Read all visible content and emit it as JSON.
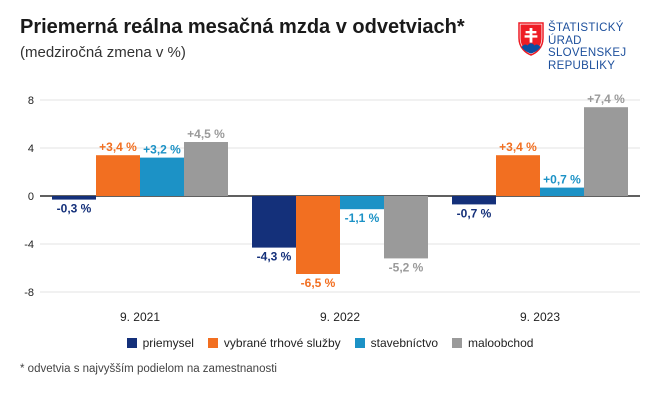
{
  "header": {
    "title": "Priemerná reálna mesačná mzda v odvetviach*",
    "subtitle": "(medziročná zmena v %)"
  },
  "logo": {
    "lines": [
      "ŠTATISTICKÝ",
      "ÚRAD",
      "SLOVENSKEJ",
      "REPUBLIKY"
    ],
    "icon": "slovak-coat-of-arms-icon"
  },
  "footnote": "* odvetvia s najvyšším podielom na zamestnanosti",
  "chart_data": {
    "type": "bar",
    "categories": [
      "9. 2021",
      "9. 2022",
      "9. 2023"
    ],
    "ylim": [
      -8,
      8
    ],
    "yticks": [
      8,
      4,
      0,
      -4,
      -8
    ],
    "grid": true,
    "legend_position": "bottom",
    "series": [
      {
        "name": "priemysel",
        "color": "#14307a",
        "values": [
          -0.3,
          -4.3,
          -0.7
        ],
        "labels": [
          "-0,3 %",
          "-4,3 %",
          "-0,7 %"
        ]
      },
      {
        "name": "vybrané trhové služby",
        "color": "#f26f21",
        "values": [
          3.4,
          -6.5,
          3.4
        ],
        "labels": [
          "+3,4 %",
          "-6,5 %",
          "+3,4 %"
        ]
      },
      {
        "name": "stavebníctvo",
        "color": "#1c92c6",
        "values": [
          3.2,
          -1.1,
          0.7
        ],
        "labels": [
          "+3,2 %",
          "-1,1 %",
          "+0,7 %"
        ]
      },
      {
        "name": "maloobchod",
        "color": "#9a9a9a",
        "values": [
          4.5,
          -5.2,
          7.4
        ],
        "labels": [
          "+4,5 %",
          "-5,2 %",
          "+7,4 %"
        ]
      }
    ]
  }
}
